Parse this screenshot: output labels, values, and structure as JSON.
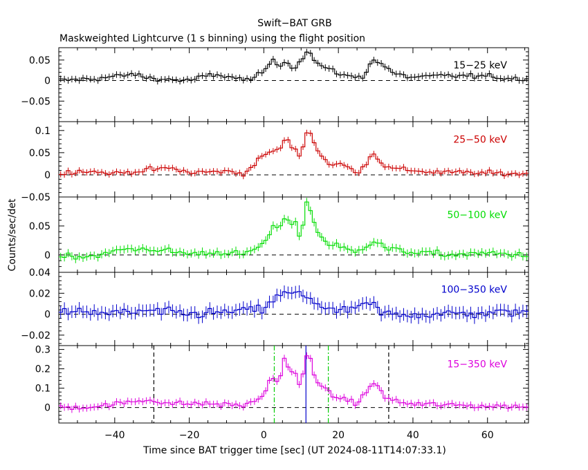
{
  "header": {
    "title": "Swift−BAT GRB",
    "subtitle": "Maskweighted Lightcurve (1 s binning) using the flight position"
  },
  "chart_data": {
    "type": "line",
    "xlabel": "Time since BAT trigger time [sec] (UT 2024-08-11T14:07:33.1)",
    "ylabel": "Counts/sec/det",
    "xlim": [
      -55,
      71
    ],
    "x_ticks": [
      -40,
      -20,
      0,
      20,
      40,
      60
    ],
    "x_tick_labels": [
      "−40",
      "−20",
      "0",
      "20",
      "40",
      "60"
    ],
    "bin_width_s": 1,
    "panels": [
      {
        "name": "15−25 keV",
        "color": "#000000",
        "ylim": [
          -0.1,
          0.08
        ],
        "y_ticks": [
          -0.05,
          0,
          0.05
        ],
        "y_tick_labels": [
          "−0.05",
          "0",
          "0.05"
        ],
        "segments": [
          {
            "t": -55,
            "y": 0.0
          },
          {
            "t": -45,
            "y": 0.005
          },
          {
            "t": -40,
            "y": 0.01
          },
          {
            "t": -35,
            "y": 0.015
          },
          {
            "t": -30,
            "y": 0.005
          },
          {
            "t": -20,
            "y": 0.0
          },
          {
            "t": -15,
            "y": 0.012
          },
          {
            "t": -10,
            "y": 0.012
          },
          {
            "t": -5,
            "y": 0.0
          },
          {
            "t": 0,
            "y": 0.018
          },
          {
            "t": 1,
            "y": 0.038
          },
          {
            "t": 2,
            "y": 0.048
          },
          {
            "t": 5,
            "y": 0.035
          },
          {
            "t": 6,
            "y": 0.057
          },
          {
            "t": 8,
            "y": 0.02
          },
          {
            "t": 9,
            "y": 0.045
          },
          {
            "t": 12,
            "y": 0.072
          },
          {
            "t": 14,
            "y": 0.045
          },
          {
            "t": 16,
            "y": 0.032
          },
          {
            "t": 20,
            "y": 0.018
          },
          {
            "t": 24,
            "y": 0.008
          },
          {
            "t": 27,
            "y": 0.01
          },
          {
            "t": 29,
            "y": 0.055
          },
          {
            "t": 30,
            "y": 0.045
          },
          {
            "t": 32,
            "y": 0.04
          },
          {
            "t": 35,
            "y": 0.015
          },
          {
            "t": 40,
            "y": 0.008
          },
          {
            "t": 50,
            "y": 0.012
          },
          {
            "t": 60,
            "y": 0.01
          },
          {
            "t": 71,
            "y": 0.003
          }
        ],
        "sigma": 0.008
      },
      {
        "name": "25−50 keV",
        "color": "#cc0000",
        "ylim": [
          -0.05,
          0.12
        ],
        "y_ticks": [
          -0.05,
          0,
          0.05,
          0.1
        ],
        "y_tick_labels": [
          "−0.05",
          "0",
          "0.05",
          "0.1"
        ],
        "segments": [
          {
            "t": -55,
            "y": 0.0
          },
          {
            "t": -50,
            "y": 0.01
          },
          {
            "t": -40,
            "y": 0.003
          },
          {
            "t": -30,
            "y": 0.012
          },
          {
            "t": -25,
            "y": 0.015
          },
          {
            "t": -20,
            "y": 0.005
          },
          {
            "t": -10,
            "y": 0.008
          },
          {
            "t": -5,
            "y": 0.003
          },
          {
            "t": 0,
            "y": 0.045
          },
          {
            "t": 1,
            "y": 0.05
          },
          {
            "t": 5,
            "y": 0.06
          },
          {
            "t": 6,
            "y": 0.098
          },
          {
            "t": 7,
            "y": 0.05
          },
          {
            "t": 8,
            "y": 0.075
          },
          {
            "t": 9,
            "y": 0.045
          },
          {
            "t": 10,
            "y": 0.04
          },
          {
            "t": 11,
            "y": 0.09
          },
          {
            "t": 12,
            "y": 0.105
          },
          {
            "t": 14,
            "y": 0.06
          },
          {
            "t": 16,
            "y": 0.04
          },
          {
            "t": 18,
            "y": 0.02
          },
          {
            "t": 20,
            "y": 0.025
          },
          {
            "t": 22,
            "y": 0.02
          },
          {
            "t": 25,
            "y": 0.005
          },
          {
            "t": 27,
            "y": 0.02
          },
          {
            "t": 29,
            "y": 0.05
          },
          {
            "t": 31,
            "y": 0.035
          },
          {
            "t": 33,
            "y": 0.015
          },
          {
            "t": 38,
            "y": 0.012
          },
          {
            "t": 45,
            "y": 0.006
          },
          {
            "t": 55,
            "y": 0.005
          },
          {
            "t": 65,
            "y": 0.003
          },
          {
            "t": 71,
            "y": 0.002
          }
        ],
        "sigma": 0.007
      },
      {
        "name": "50−100 keV",
        "color": "#00dd00",
        "ylim": [
          -0.03,
          0.1
        ],
        "y_ticks": [
          0,
          0.05
        ],
        "y_tick_labels": [
          "0",
          "0.05"
        ],
        "segments": [
          {
            "t": -55,
            "y": 0.0
          },
          {
            "t": -48,
            "y": -0.003
          },
          {
            "t": -42,
            "y": 0.002
          },
          {
            "t": -38,
            "y": 0.01
          },
          {
            "t": -30,
            "y": 0.01
          },
          {
            "t": -20,
            "y": 0.002
          },
          {
            "t": -10,
            "y": 0.005
          },
          {
            "t": -5,
            "y": 0.0
          },
          {
            "t": 0,
            "y": 0.02
          },
          {
            "t": 1,
            "y": 0.03
          },
          {
            "t": 3,
            "y": 0.05
          },
          {
            "t": 5,
            "y": 0.045
          },
          {
            "t": 6,
            "y": 0.085
          },
          {
            "t": 7,
            "y": 0.04
          },
          {
            "t": 8,
            "y": 0.07
          },
          {
            "t": 10,
            "y": 0.02
          },
          {
            "t": 11,
            "y": 0.085
          },
          {
            "t": 12,
            "y": 0.095
          },
          {
            "t": 13,
            "y": 0.06
          },
          {
            "t": 15,
            "y": 0.035
          },
          {
            "t": 17,
            "y": 0.02
          },
          {
            "t": 20,
            "y": 0.015
          },
          {
            "t": 24,
            "y": 0.005
          },
          {
            "t": 28,
            "y": 0.018
          },
          {
            "t": 30,
            "y": 0.025
          },
          {
            "t": 33,
            "y": 0.01
          },
          {
            "t": 40,
            "y": 0.005
          },
          {
            "t": 50,
            "y": 0.0
          },
          {
            "t": 60,
            "y": 0.003
          },
          {
            "t": 71,
            "y": 0.0
          }
        ],
        "sigma": 0.007
      },
      {
        "name": "100−350 keV",
        "color": "#0000cc",
        "ylim": [
          -0.03,
          0.04
        ],
        "y_ticks": [
          -0.02,
          0,
          0.02,
          0.04
        ],
        "y_tick_labels": [
          "−0.02",
          "0",
          "0.02",
          "0.04"
        ],
        "segments": [
          {
            "t": -55,
            "y": 0.002
          },
          {
            "t": -40,
            "y": 0.001
          },
          {
            "t": -30,
            "y": 0.003
          },
          {
            "t": -20,
            "y": 0.0
          },
          {
            "t": -10,
            "y": 0.002
          },
          {
            "t": 0,
            "y": 0.005
          },
          {
            "t": 3,
            "y": 0.015
          },
          {
            "t": 6,
            "y": 0.02
          },
          {
            "t": 8,
            "y": 0.02
          },
          {
            "t": 11,
            "y": 0.018
          },
          {
            "t": 13,
            "y": 0.015
          },
          {
            "t": 16,
            "y": 0.005
          },
          {
            "t": 20,
            "y": 0.002
          },
          {
            "t": 29,
            "y": 0.01
          },
          {
            "t": 32,
            "y": 0.0
          },
          {
            "t": 45,
            "y": 0.0
          },
          {
            "t": 60,
            "y": 0.001
          },
          {
            "t": 71,
            "y": 0.003
          }
        ],
        "sigma": 0.006
      },
      {
        "name": "15−350 keV",
        "color": "#dd00dd",
        "ylim": [
          -0.08,
          0.32
        ],
        "y_ticks": [
          0,
          0.1,
          0.2,
          0.3
        ],
        "y_tick_labels": [
          "0",
          "0.1",
          "0.2",
          "0.3"
        ],
        "segments": [
          {
            "t": -55,
            "y": 0.0
          },
          {
            "t": -45,
            "y": 0.005
          },
          {
            "t": -35,
            "y": 0.03
          },
          {
            "t": -30,
            "y": 0.04
          },
          {
            "t": -25,
            "y": 0.02
          },
          {
            "t": -15,
            "y": 0.02
          },
          {
            "t": -10,
            "y": 0.015
          },
          {
            "t": -5,
            "y": 0.01
          },
          {
            "t": 0,
            "y": 0.06
          },
          {
            "t": 1,
            "y": 0.12
          },
          {
            "t": 2,
            "y": 0.16
          },
          {
            "t": 4,
            "y": 0.13
          },
          {
            "t": 6,
            "y": 0.28
          },
          {
            "t": 7,
            "y": 0.15
          },
          {
            "t": 8,
            "y": 0.22
          },
          {
            "t": 9,
            "y": 0.12
          },
          {
            "t": 10,
            "y": 0.1
          },
          {
            "t": 11,
            "y": 0.25
          },
          {
            "t": 12,
            "y": 0.29
          },
          {
            "t": 13,
            "y": 0.2
          },
          {
            "t": 15,
            "y": 0.12
          },
          {
            "t": 17,
            "y": 0.075
          },
          {
            "t": 20,
            "y": 0.05
          },
          {
            "t": 25,
            "y": 0.025
          },
          {
            "t": 27,
            "y": 0.06
          },
          {
            "t": 29,
            "y": 0.13
          },
          {
            "t": 31,
            "y": 0.1
          },
          {
            "t": 33,
            "y": 0.045
          },
          {
            "t": 38,
            "y": 0.02
          },
          {
            "t": 50,
            "y": 0.012
          },
          {
            "t": 60,
            "y": 0.008
          },
          {
            "t": 71,
            "y": 0.005
          }
        ],
        "sigma": 0.018,
        "vlines": [
          {
            "t": -29.5,
            "color": "#000000",
            "style": "dashed"
          },
          {
            "t": 2.8,
            "color": "#00cc00",
            "style": "dashdot"
          },
          {
            "t": 11.3,
            "color": "#0000cc",
            "style": "solid"
          },
          {
            "t": 17.3,
            "color": "#00cc00",
            "style": "dashdot"
          },
          {
            "t": 33.5,
            "color": "#000000",
            "style": "dashed"
          }
        ]
      }
    ]
  }
}
